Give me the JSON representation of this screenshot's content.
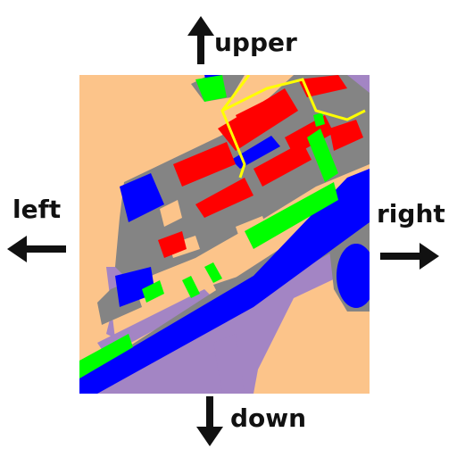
{
  "directions": {
    "upper": "upper",
    "left": "left",
    "right": "right",
    "down": "down"
  },
  "colors": {
    "background_land": "#FCC48A",
    "road": "#848484",
    "building": "#FF0000",
    "vegetation": "#00FF00",
    "water": "#0000FF",
    "bare_area": "#A385C4",
    "path_line": "#FFFF00",
    "arrow": "#111111"
  },
  "icons": {
    "upper": "arrow-up-icon",
    "left": "arrow-left-icon",
    "right": "arrow-right-icon",
    "down": "arrow-down-icon"
  }
}
